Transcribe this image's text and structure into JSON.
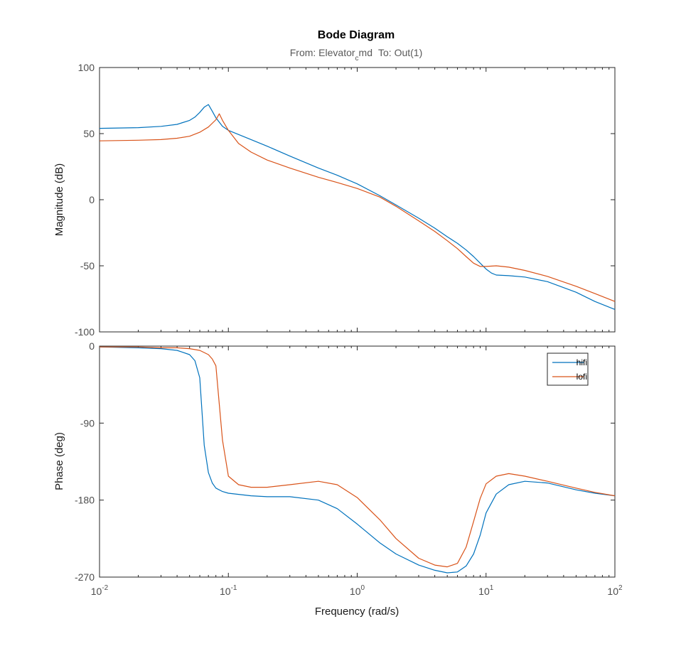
{
  "chart_data": {
    "type": "line",
    "title": "Bode Diagram",
    "subtitle": {
      "from_prefix": "From: Elevator",
      "from_subscript": "c",
      "from_suffix": "md",
      "to_text": "To: Out(1)"
    },
    "xlabel": "Frequency  (rad/s)",
    "x_scale": "log",
    "xlim": [
      0.01,
      100
    ],
    "x_tick_labels": [
      {
        "base": "10",
        "exp": "-2"
      },
      {
        "base": "10",
        "exp": "-1"
      },
      {
        "base": "10",
        "exp": "0"
      },
      {
        "base": "10",
        "exp": "1"
      },
      {
        "base": "10",
        "exp": "2"
      }
    ],
    "legend": {
      "placement": "top-right of phase plot",
      "entries": [
        {
          "name": "hifi",
          "color": "#0072BD"
        },
        {
          "name": "lofi",
          "color": "#D95319"
        }
      ]
    },
    "magnitude": {
      "ylabel": "Magnitude (dB)",
      "ylim": [
        -100,
        100
      ],
      "yticks": [
        -100,
        -50,
        0,
        50,
        100
      ],
      "series": [
        {
          "name": "hifi",
          "color": "#0072BD",
          "x": [
            0.01,
            0.02,
            0.03,
            0.04,
            0.05,
            0.055,
            0.06,
            0.065,
            0.07,
            0.075,
            0.08,
            0.09,
            0.1,
            0.15,
            0.2,
            0.3,
            0.5,
            0.7,
            1.0,
            1.5,
            2.0,
            3.0,
            4.0,
            5.0,
            6.0,
            7.0,
            8.0,
            9.0,
            10.0,
            11.0,
            12.0,
            15.0,
            20.0,
            30.0,
            50.0,
            70.0,
            100.0
          ],
          "y": [
            54,
            54.5,
            55.5,
            57,
            60,
            62.5,
            66,
            70,
            72,
            67,
            62,
            55.5,
            52.5,
            45.5,
            40.5,
            33,
            24,
            18.5,
            12,
            3,
            -4,
            -14,
            -21.5,
            -28,
            -33,
            -38,
            -43,
            -48,
            -52.5,
            -55.5,
            -57,
            -57.5,
            -58.5,
            -62,
            -70,
            -77,
            -83
          ]
        },
        {
          "name": "lofi",
          "color": "#D95319",
          "x": [
            0.01,
            0.02,
            0.03,
            0.04,
            0.05,
            0.06,
            0.07,
            0.08,
            0.085,
            0.09,
            0.1,
            0.12,
            0.15,
            0.2,
            0.3,
            0.5,
            0.7,
            1.0,
            1.5,
            2.0,
            3.0,
            4.0,
            5.0,
            6.0,
            7.0,
            8.0,
            9.0,
            10.0,
            12.0,
            15.0,
            20.0,
            30.0,
            50.0,
            70.0,
            100.0
          ],
          "y": [
            44.5,
            45,
            45.5,
            46.5,
            48,
            51,
            55,
            60.5,
            65,
            60,
            52.5,
            42.5,
            36,
            30,
            24,
            17,
            13,
            8.5,
            2,
            -5,
            -16,
            -24,
            -31,
            -37,
            -43,
            -48,
            -50.5,
            -50.5,
            -50,
            -51,
            -53.5,
            -58,
            -65.5,
            -71,
            -77
          ]
        }
      ]
    },
    "phase": {
      "ylabel": "Phase (deg)",
      "ylim": [
        -270,
        0
      ],
      "yticks": [
        -270,
        -180,
        -90,
        0
      ],
      "series": [
        {
          "name": "hifi",
          "color": "#0072BD",
          "x": [
            0.01,
            0.02,
            0.03,
            0.04,
            0.05,
            0.055,
            0.06,
            0.065,
            0.07,
            0.075,
            0.08,
            0.09,
            0.1,
            0.15,
            0.2,
            0.3,
            0.5,
            0.7,
            1.0,
            1.5,
            2.0,
            3.0,
            4.0,
            5.0,
            6.0,
            7.0,
            8.0,
            9.0,
            10.0,
            12.0,
            15.0,
            20.0,
            30.0,
            50.0,
            70.0,
            100.0
          ],
          "y": [
            -1,
            -2,
            -3,
            -5,
            -10,
            -17,
            -37,
            -116,
            -148,
            -160,
            -166,
            -170,
            -172,
            -175,
            -176,
            -176,
            -180,
            -190,
            -208,
            -230,
            -243,
            -256,
            -262,
            -265,
            -264,
            -257,
            -243,
            -221,
            -195,
            -173,
            -162,
            -158,
            -160,
            -168,
            -172,
            -175
          ]
        },
        {
          "name": "lofi",
          "color": "#D95319",
          "x": [
            0.01,
            0.02,
            0.03,
            0.04,
            0.05,
            0.06,
            0.07,
            0.075,
            0.08,
            0.085,
            0.09,
            0.1,
            0.12,
            0.15,
            0.2,
            0.3,
            0.5,
            0.7,
            1.0,
            1.5,
            2.0,
            3.0,
            4.0,
            5.0,
            6.0,
            7.0,
            8.0,
            9.0,
            10.0,
            12.0,
            15.0,
            20.0,
            30.0,
            50.0,
            70.0,
            100.0
          ],
          "y": [
            -1,
            -1,
            -2,
            -2,
            -3,
            -5,
            -10,
            -15,
            -23,
            -68,
            -110,
            -152,
            -162,
            -165,
            -165,
            -162,
            -158,
            -162,
            -177,
            -203,
            -225,
            -248,
            -256,
            -258,
            -254,
            -235,
            -205,
            -178,
            -161,
            -152,
            -149,
            -152,
            -158,
            -166,
            -171,
            -175
          ]
        }
      ]
    }
  }
}
